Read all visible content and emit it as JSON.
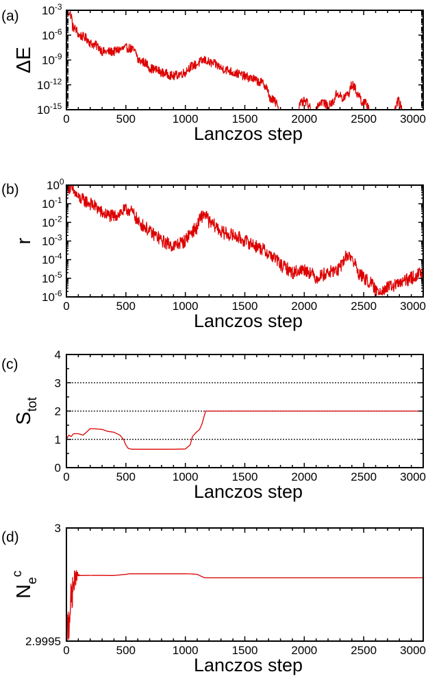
{
  "colors": {
    "series": "#dd0000",
    "axis": "#000000",
    "background": "#ffffff"
  },
  "chart_data": [
    {
      "panel_label": "(a)",
      "type": "line",
      "yscale": "log",
      "xlabel": "Lanczos step",
      "ylabel": "ΔE",
      "xlim": [
        0,
        3000
      ],
      "ylim": [
        1e-15,
        0.001
      ],
      "x_ticks": [
        0,
        500,
        1000,
        1500,
        2000,
        2500,
        3000
      ],
      "x_tick_labels": [
        "0",
        "500",
        "1000",
        "1500",
        "2000",
        "2500",
        "3000"
      ],
      "y_ticks": [
        {
          "value": 1e-15,
          "base": "10",
          "exp": "-15"
        },
        {
          "value": 1e-12,
          "base": "10",
          "exp": "-12"
        },
        {
          "value": 1e-09,
          "base": "10",
          "exp": "-9"
        },
        {
          "value": 1e-06,
          "base": "10",
          "exp": "-6"
        },
        {
          "value": 0.001,
          "base": "10",
          "exp": "-3"
        }
      ],
      "series": [
        {
          "name": "ΔE",
          "noise_amplitude_decades": 0.55,
          "x": [
            0,
            50,
            100,
            200,
            300,
            400,
            520,
            600,
            700,
            800,
            900,
            1000,
            1100,
            1160,
            1200,
            1300,
            1400,
            1500,
            1600,
            1700,
            1750,
            1780,
            1850,
            1900,
            1950,
            2000,
            2050,
            2100,
            2150,
            2200,
            2250,
            2280,
            2320,
            2380,
            2400,
            2440,
            2480,
            2550,
            2600,
            2700,
            2760,
            2790,
            2820,
            2850,
            2900,
            3000
          ],
          "y": [
            0.001,
            1e-05,
            1e-06,
            1e-07,
            1e-08,
            1e-08,
            3e-08,
            1e-09,
            1e-10,
            3e-11,
            1e-11,
            3e-11,
            3e-10,
            1e-09,
            5e-10,
            1e-10,
            3e-11,
            1e-11,
            3e-12,
            3e-14,
            1e-14,
            1e-15,
            1e-15,
            1e-15,
            1e-15,
            1e-14,
            1e-15,
            1e-15,
            1e-14,
            1e-15,
            1e-14,
            1e-13,
            1e-14,
            1e-13,
            1e-12,
            1e-13,
            1e-14,
            1e-15,
            1e-15,
            1e-15,
            1e-15,
            1e-14,
            1e-15,
            1e-15,
            1e-15,
            1e-15
          ]
        }
      ]
    },
    {
      "panel_label": "(b)",
      "type": "line",
      "yscale": "log",
      "xlabel": "Lanczos step",
      "ylabel": "r",
      "xlim": [
        0,
        3000
      ],
      "ylim": [
        1e-06,
        1
      ],
      "x_ticks": [
        0,
        500,
        1000,
        1500,
        2000,
        2500,
        3000
      ],
      "x_tick_labels": [
        "0",
        "500",
        "1000",
        "1500",
        "2000",
        "2500",
        "3000"
      ],
      "y_ticks": [
        {
          "value": 1e-06,
          "base": "10",
          "exp": "-6"
        },
        {
          "value": 1e-05,
          "base": "10",
          "exp": "-5"
        },
        {
          "value": 0.0001,
          "base": "10",
          "exp": "-4"
        },
        {
          "value": 0.001,
          "base": "10",
          "exp": "-3"
        },
        {
          "value": 0.01,
          "base": "10",
          "exp": "-2"
        },
        {
          "value": 0.1,
          "base": "10",
          "exp": "-1"
        },
        {
          "value": 1,
          "base": "10",
          "exp": "0"
        }
      ],
      "series": [
        {
          "name": "r",
          "noise_amplitude_decades": 0.35,
          "x": [
            0,
            50,
            100,
            200,
            300,
            400,
            520,
            600,
            700,
            800,
            900,
            1000,
            1100,
            1160,
            1200,
            1300,
            1400,
            1500,
            1600,
            1700,
            1800,
            1900,
            2000,
            2100,
            2200,
            2300,
            2380,
            2400,
            2450,
            2500,
            2600,
            2700,
            2800,
            2900,
            3000
          ],
          "y": [
            1,
            0.5,
            0.2,
            0.1,
            0.03,
            0.02,
            0.05,
            0.01,
            0.003,
            0.001,
            0.0005,
            0.001,
            0.005,
            0.03,
            0.01,
            0.003,
            0.002,
            0.001,
            0.0005,
            0.0002,
            5e-05,
            2e-05,
            3e-05,
            1e-05,
            2e-05,
            3e-05,
            0.0002,
            0.0001,
            2e-05,
            1e-05,
            2e-06,
            3e-06,
            5e-06,
            1e-05,
            2e-05
          ]
        }
      ]
    },
    {
      "panel_label": "(c)",
      "type": "line",
      "yscale": "linear",
      "xlabel": "Lanczos step",
      "ylabel": "S",
      "ylabel_sub": "tot",
      "xlim": [
        0,
        3000
      ],
      "ylim": [
        0,
        4
      ],
      "x_ticks": [
        0,
        500,
        1000,
        1500,
        2000,
        2500,
        3000
      ],
      "x_tick_labels": [
        "0",
        "500",
        "1000",
        "1500",
        "2000",
        "2500",
        "3000"
      ],
      "y_ticks": [
        0,
        1,
        2,
        3,
        4
      ],
      "y_tick_labels": [
        "0",
        "1",
        "2",
        "3",
        "4"
      ],
      "hlines": [
        1,
        2,
        3
      ],
      "series": [
        {
          "name": "S_tot",
          "x": [
            0,
            20,
            40,
            60,
            100,
            140,
            180,
            200,
            250,
            300,
            350,
            400,
            450,
            480,
            500,
            520,
            550,
            700,
            900,
            1000,
            1040,
            1060,
            1080,
            1100,
            1120,
            1140,
            1160,
            1170,
            1200,
            1500,
            2000,
            2500,
            3000
          ],
          "y": [
            1.0,
            1.15,
            1.1,
            1.2,
            1.2,
            1.15,
            1.3,
            1.38,
            1.37,
            1.35,
            1.28,
            1.25,
            1.15,
            1.0,
            0.8,
            0.68,
            0.65,
            0.65,
            0.65,
            0.66,
            0.8,
            1.1,
            1.2,
            1.28,
            1.35,
            1.55,
            1.85,
            2.0,
            2.0,
            2.0,
            2.0,
            2.0,
            2.0
          ]
        }
      ]
    },
    {
      "panel_label": "(d)",
      "type": "line",
      "yscale": "linear",
      "xlabel": "Lanczos step",
      "ylabel": "N",
      "ylabel_sub": "e",
      "ylabel_sup": "c",
      "xlim": [
        0,
        3000
      ],
      "ylim": [
        2.9995,
        3.0
      ],
      "x_ticks": [
        0,
        500,
        1000,
        1500,
        2000,
        2500,
        3000
      ],
      "x_tick_labels": [
        "0",
        "500",
        "1000",
        "1500",
        "2000",
        "2500",
        "3000"
      ],
      "y_ticks": [
        2.9995,
        3.0
      ],
      "y_tick_labels": [
        "2.9995",
        "3"
      ],
      "series": [
        {
          "name": "N_e^c",
          "noise_amplitude": 0.00012,
          "x": [
            0,
            15,
            30,
            45,
            60,
            75,
            90,
            110,
            200,
            400,
            500,
            530,
            600,
            800,
            1000,
            1050,
            1100,
            1120,
            1140,
            1160,
            1200,
            1500,
            2000,
            2500,
            3000
          ],
          "y": [
            2.9995,
            2.99955,
            2.99965,
            2.9997,
            2.99975,
            2.99978,
            2.99979,
            2.99979,
            2.9997905,
            2.99979,
            2.999795,
            2.9997975,
            2.9997975,
            2.9997975,
            2.9997975,
            2.999797,
            2.999795,
            2.99979,
            2.999785,
            2.99978,
            2.99978,
            2.99978,
            2.99978,
            2.99978,
            2.99978
          ]
        }
      ]
    }
  ]
}
